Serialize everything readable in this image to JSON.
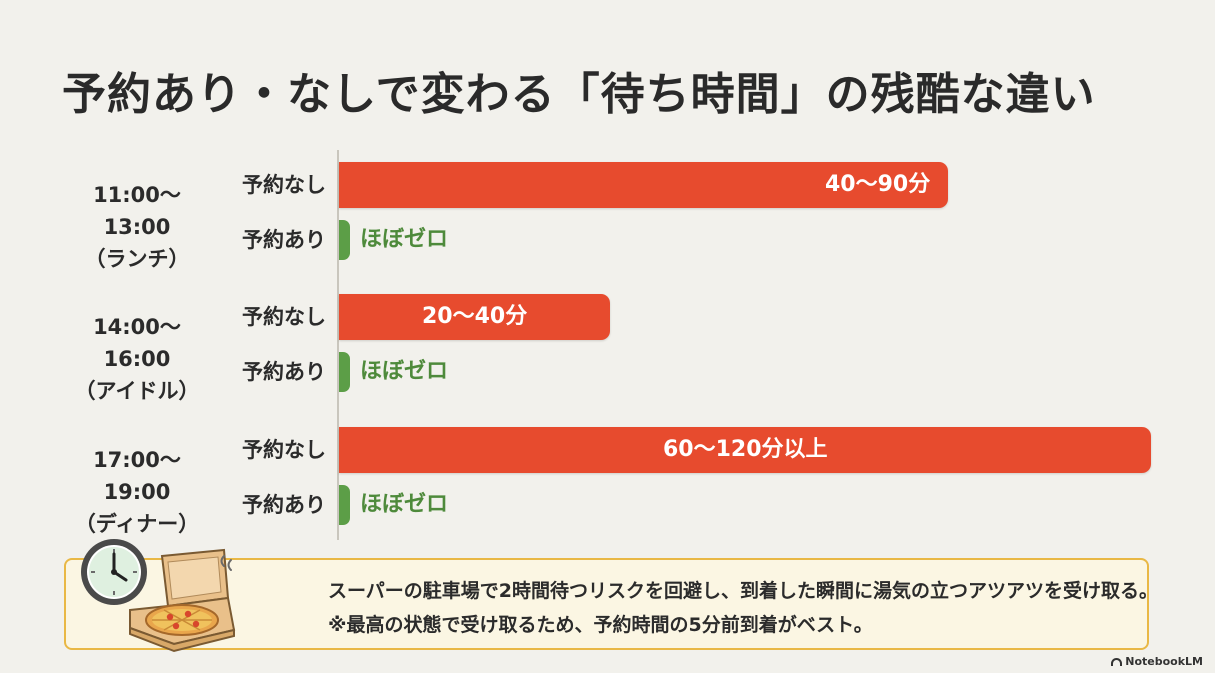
{
  "title": "予約あり・なしで変わる「待ち時間」の残酷な違い",
  "colors": {
    "no_reservation": "#e74b2e",
    "with_reservation": "#5c9e47",
    "note_border": "#e9b845"
  },
  "chart_data": {
    "type": "bar",
    "orientation": "horizontal",
    "groups": [
      {
        "time": "11:00〜13:00",
        "period": "（ランチ）",
        "rows": [
          {
            "label": "予約なし",
            "value_text": "40〜90分",
            "min": 40,
            "max": 90,
            "unit": "分"
          },
          {
            "label": "予約あり",
            "value_text": "ほぼゼロ",
            "min": 0,
            "max": 0,
            "unit": "分"
          }
        ]
      },
      {
        "time": "14:00〜16:00",
        "period": "（アイドル）",
        "rows": [
          {
            "label": "予約なし",
            "value_text": "20〜40分",
            "min": 20,
            "max": 40,
            "unit": "分"
          },
          {
            "label": "予約あり",
            "value_text": "ほぼゼロ",
            "min": 0,
            "max": 0,
            "unit": "分"
          }
        ]
      },
      {
        "time": "17:00〜19:00",
        "period": "（ディナー）",
        "rows": [
          {
            "label": "予約なし",
            "value_text": "60〜120分以上",
            "min": 60,
            "max": 120,
            "unit": "分"
          },
          {
            "label": "予約あり",
            "value_text": "ほぼゼロ",
            "min": 0,
            "max": 0,
            "unit": "分"
          }
        ]
      }
    ],
    "xlim": [
      0,
      120
    ],
    "grid": false,
    "legend": "none"
  },
  "note": {
    "line1": "スーパーの駐車場で2時間待つリスクを回避し、到着した瞬間に湯気の立つアツアツを受け取る。",
    "line2": "※最高の状態で受け取るため、予約時間の5分前到着がベスト。",
    "icons": [
      "clock-icon",
      "pizza-box-icon"
    ]
  },
  "brand": "NotebookLM"
}
